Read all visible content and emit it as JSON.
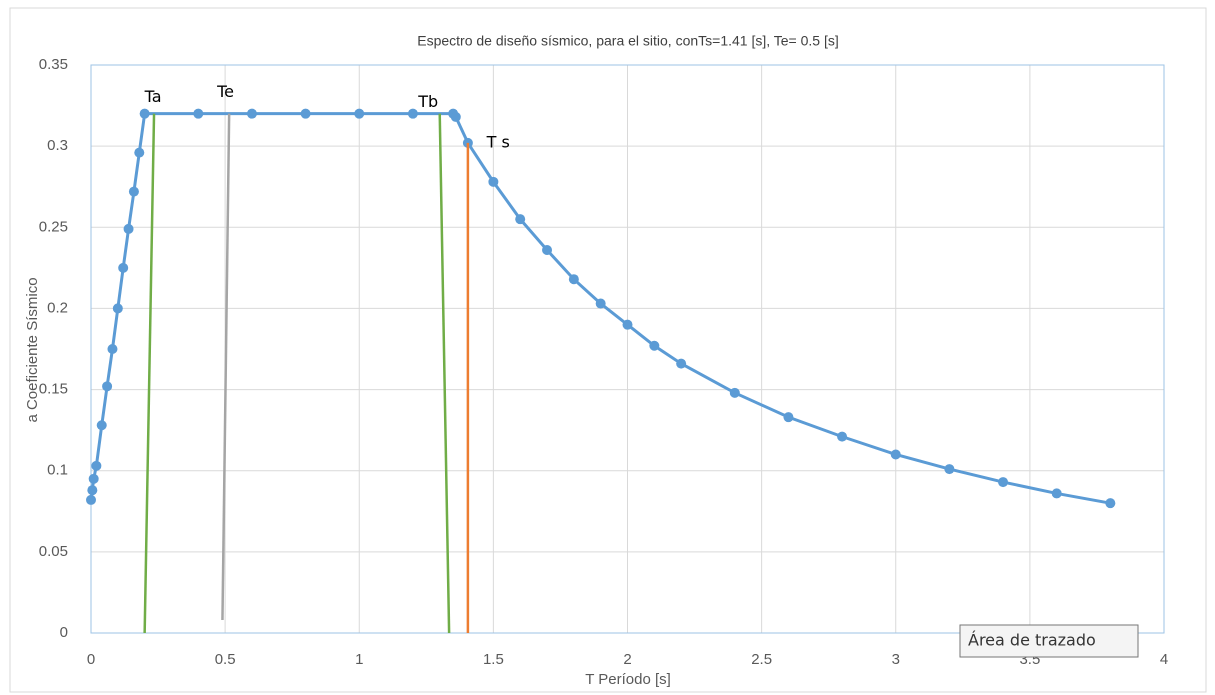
{
  "chart_data": {
    "type": "line",
    "title": "Espectro de diseño sísmico, para el sitio, conTs=1.41 [s], Te= 0.5 [s]",
    "x_label": "T Período [s]",
    "y_label": "a Coeficiente Sísmico",
    "tooltip": "Área de trazado",
    "xlim": [
      0,
      4
    ],
    "xticks": [
      0,
      0.5,
      1,
      1.5,
      2,
      2.5,
      3,
      3.5,
      4
    ],
    "ylim": [
      0,
      0.35
    ],
    "yticks": [
      0,
      0.05,
      0.1,
      0.15,
      0.2,
      0.25,
      0.3,
      0.35
    ],
    "grid": true,
    "series": [
      {
        "color": "#5b9bd5",
        "markers": true,
        "x": [
          0,
          0.005,
          0.01,
          0.02,
          0.04,
          0.06,
          0.08,
          0.1,
          0.12,
          0.14,
          0.16,
          0.18,
          0.2,
          0.4,
          0.6,
          0.8,
          1.0,
          1.2,
          1.35,
          1.36,
          1.405,
          1.5,
          1.6,
          1.7,
          1.8,
          1.9,
          2.0,
          2.1,
          2.2,
          2.4,
          2.6,
          2.8,
          3.0,
          3.2,
          3.4,
          3.6,
          3.8
        ],
        "values": [
          0.082,
          0.088,
          0.095,
          0.103,
          0.128,
          0.152,
          0.175,
          0.2,
          0.225,
          0.249,
          0.272,
          0.296,
          0.32,
          0.32,
          0.32,
          0.32,
          0.32,
          0.32,
          0.32,
          0.318,
          0.302,
          0.278,
          0.255,
          0.236,
          0.218,
          0.203,
          0.19,
          0.177,
          0.166,
          0.148,
          0.133,
          0.121,
          0.11,
          0.101,
          0.093,
          0.086,
          0.08
        ]
      },
      {
        "color": "#70ad47",
        "markers": false,
        "x": [
          0.2,
          0.235
        ],
        "values": [
          0,
          0.32
        ]
      },
      {
        "color": "#a5a5a5",
        "markers": false,
        "x": [
          0.49,
          0.515
        ],
        "values": [
          0.008,
          0.32
        ]
      },
      {
        "color": "#70ad47",
        "markers": false,
        "x": [
          1.3,
          1.335
        ],
        "values": [
          0.32,
          0
        ]
      },
      {
        "color": "#ed7d31",
        "markers": false,
        "x": [
          1.405,
          1.405
        ],
        "values": [
          0.302,
          0
        ]
      }
    ],
    "annotations": [
      {
        "text": "Ta",
        "x": 0.2,
        "y": 0.33
      },
      {
        "text": "Te",
        "x": 0.47,
        "y": 0.333
      },
      {
        "text": "Tb",
        "x": 1.22,
        "y": 0.327
      },
      {
        "text": "T s",
        "x": 1.475,
        "y": 0.302
      }
    ]
  }
}
